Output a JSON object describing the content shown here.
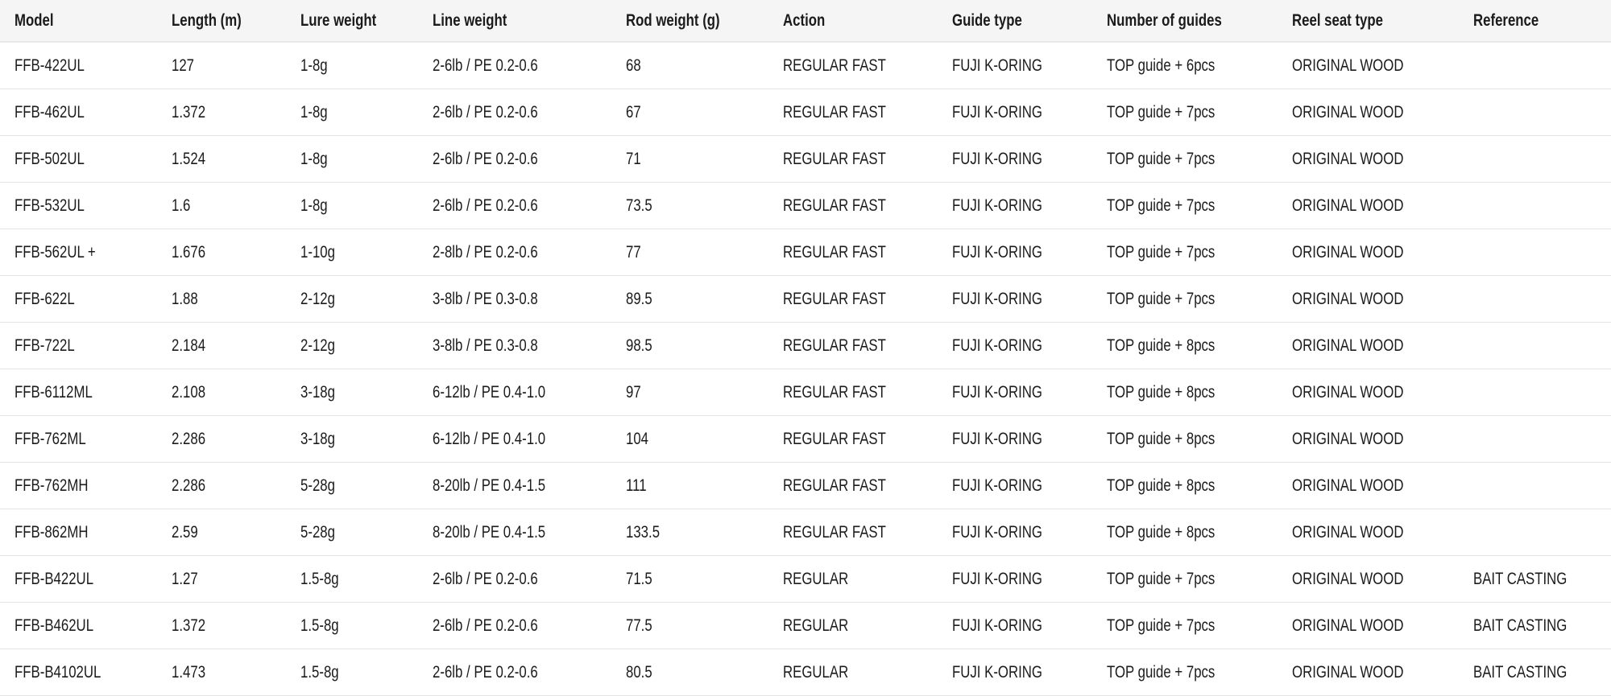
{
  "table": {
    "headers": [
      "Model",
      "Length (m)",
      "Lure weight",
      "Line weight",
      "Rod weight (g)",
      "Action",
      "Guide type",
      "Number of guides",
      "Reel seat type",
      "Reference"
    ],
    "rows": [
      [
        "FFB-422UL",
        "127",
        "1-8g",
        "2-6lb / PE 0.2-0.6",
        "68",
        "REGULAR FAST",
        "FUJI K-ORING",
        "TOP guide + 6pcs",
        "ORIGINAL WOOD",
        ""
      ],
      [
        "FFB-462UL",
        "1.372",
        "1-8g",
        "2-6lb / PE 0.2-0.6",
        "67",
        "REGULAR FAST",
        "FUJI K-ORING",
        "TOP guide + 7pcs",
        "ORIGINAL WOOD",
        ""
      ],
      [
        "FFB-502UL",
        "1.524",
        "1-8g",
        "2-6lb / PE 0.2-0.6",
        "71",
        "REGULAR FAST",
        "FUJI K-ORING",
        "TOP guide + 7pcs",
        "ORIGINAL WOOD",
        ""
      ],
      [
        "FFB-532UL",
        "1.6",
        "1-8g",
        "2-6lb / PE 0.2-0.6",
        "73.5",
        "REGULAR FAST",
        "FUJI K-ORING",
        "TOP guide + 7pcs",
        "ORIGINAL WOOD",
        ""
      ],
      [
        "FFB-562UL +",
        "1.676",
        "1-10g",
        "2-8lb / PE 0.2-0.6",
        "77",
        "REGULAR FAST",
        "FUJI K-ORING",
        "TOP guide + 7pcs",
        "ORIGINAL WOOD",
        ""
      ],
      [
        "FFB-622L",
        "1.88",
        "2-12g",
        "3-8lb / PE 0.3-0.8",
        "89.5",
        "REGULAR FAST",
        "FUJI K-ORING",
        "TOP guide + 7pcs",
        "ORIGINAL WOOD",
        ""
      ],
      [
        "FFB-722L",
        "2.184",
        "2-12g",
        "3-8lb / PE 0.3-0.8",
        "98.5",
        "REGULAR FAST",
        "FUJI K-ORING",
        "TOP guide + 8pcs",
        "ORIGINAL WOOD",
        ""
      ],
      [
        "FFB-6112ML",
        "2.108",
        "3-18g",
        "6-12lb / PE 0.4-1.0",
        "97",
        "REGULAR FAST",
        "FUJI K-ORING",
        "TOP guide + 8pcs",
        "ORIGINAL WOOD",
        ""
      ],
      [
        "FFB-762ML",
        "2.286",
        "3-18g",
        "6-12lb / PE 0.4-1.0",
        "104",
        "REGULAR FAST",
        "FUJI K-ORING",
        "TOP guide + 8pcs",
        "ORIGINAL WOOD",
        ""
      ],
      [
        "FFB-762MH",
        "2.286",
        "5-28g",
        "8-20lb / PE 0.4-1.5",
        "111",
        "REGULAR FAST",
        "FUJI K-ORING",
        "TOP guide + 8pcs",
        "ORIGINAL WOOD",
        ""
      ],
      [
        "FFB-862MH",
        "2.59",
        "5-28g",
        "8-20lb / PE 0.4-1.5",
        "133.5",
        "REGULAR FAST",
        "FUJI K-ORING",
        "TOP guide + 8pcs",
        "ORIGINAL WOOD",
        ""
      ],
      [
        "FFB-B422UL",
        "1.27",
        "1.5-8g",
        "2-6lb / PE 0.2-0.6",
        "71.5",
        "REGULAR",
        "FUJI K-ORING",
        "TOP guide + 7pcs",
        "ORIGINAL WOOD",
        "BAIT CASTING"
      ],
      [
        "FFB-B462UL",
        "1.372",
        "1.5-8g",
        "2-6lb / PE 0.2-0.6",
        "77.5",
        "REGULAR",
        "FUJI K-ORING",
        "TOP guide + 7pcs",
        "ORIGINAL WOOD",
        "BAIT CASTING"
      ],
      [
        "FFB-B4102UL",
        "1.473",
        "1.5-8g",
        "2-6lb / PE 0.2-0.6",
        "80.5",
        "REGULAR",
        "FUJI K-ORING",
        "TOP guide + 7pcs",
        "ORIGINAL WOOD",
        "BAIT CASTING"
      ]
    ]
  }
}
